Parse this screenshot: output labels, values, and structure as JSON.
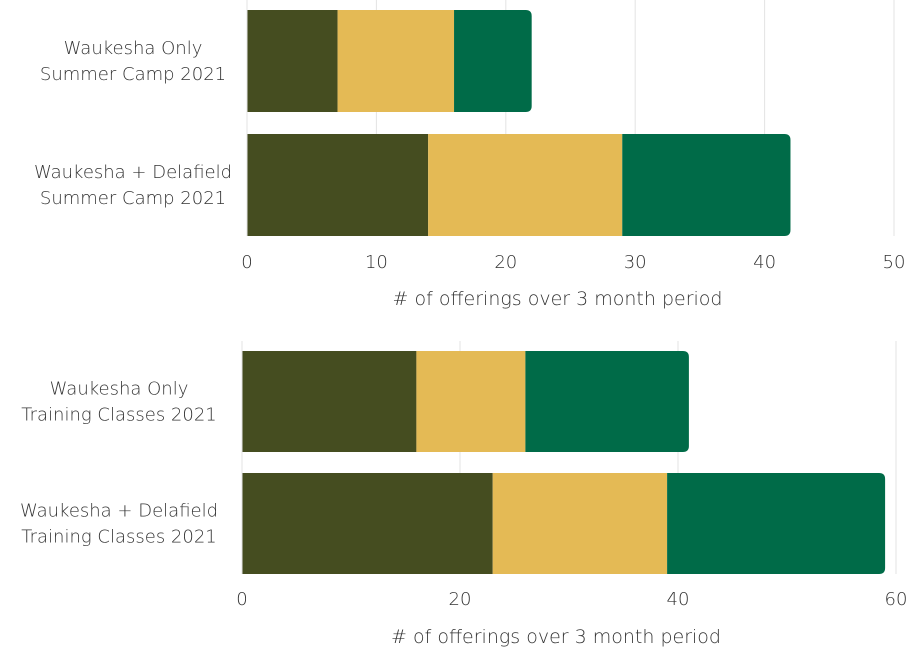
{
  "chart_data": [
    {
      "type": "bar",
      "orientation": "horizontal",
      "stacked": true,
      "categories": [
        [
          "Waukesha Only",
          "Summer Camp 2021"
        ],
        [
          "Waukesha + Delafield",
          "Summer Camp 2021"
        ]
      ],
      "series": [
        {
          "values": [
            7,
            14
          ],
          "color": "#454d20"
        },
        {
          "values": [
            9,
            15
          ],
          "color": "#e4ba55"
        },
        {
          "values": [
            6,
            13
          ],
          "color": "#006b48"
        }
      ],
      "xlabel": "# of offerings over 3 month period",
      "xlim": [
        0,
        50
      ],
      "xticks": [
        0,
        10,
        20,
        30,
        40,
        50
      ],
      "grid": "vertical"
    },
    {
      "type": "bar",
      "orientation": "horizontal",
      "stacked": true,
      "categories": [
        [
          "Waukesha Only",
          "Training Classes 2021"
        ],
        [
          "Waukesha + Delafield",
          "Training Classes 2021"
        ]
      ],
      "series": [
        {
          "values": [
            16,
            23
          ],
          "color": "#454d20"
        },
        {
          "values": [
            10,
            16
          ],
          "color": "#e4ba55"
        },
        {
          "values": [
            15,
            20
          ],
          "color": "#006b48"
        }
      ],
      "xlabel": "# of offerings over 3 month period",
      "xlim": [
        0,
        60
      ],
      "xticks": [
        0,
        20,
        40,
        60
      ],
      "grid": "vertical"
    }
  ]
}
